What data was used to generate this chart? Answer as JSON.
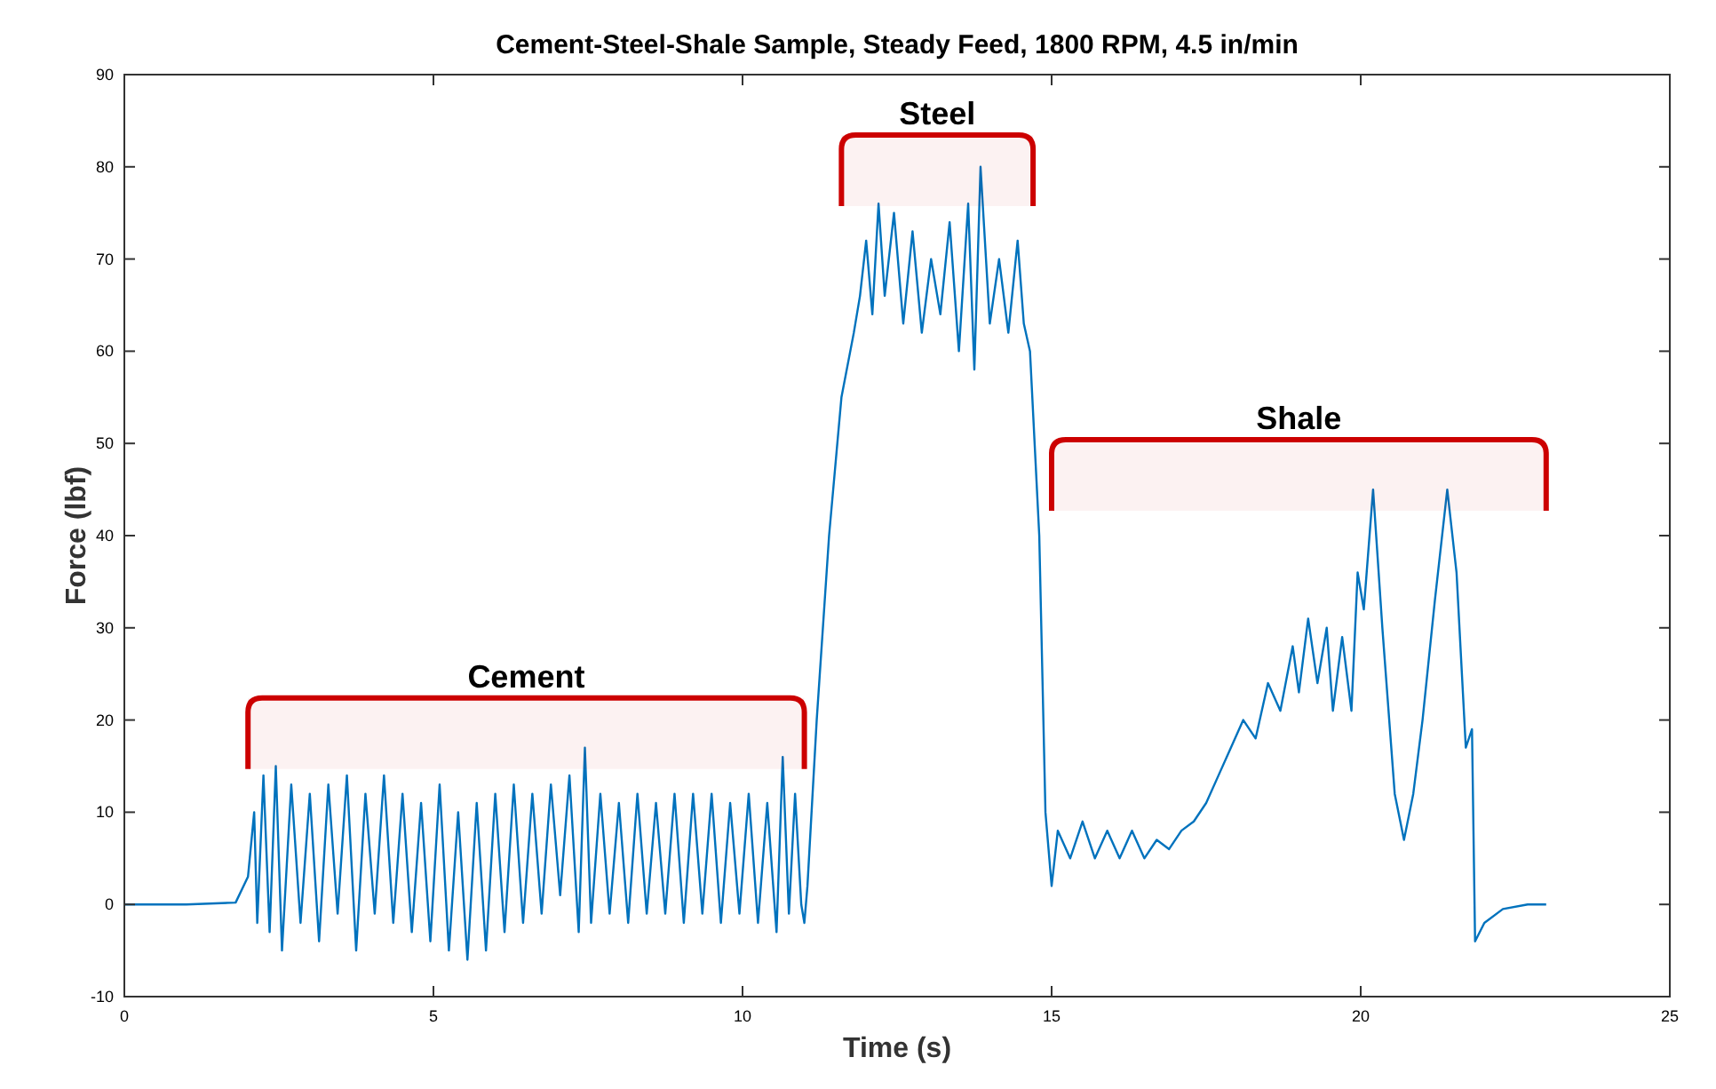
{
  "chart_data": {
    "type": "line",
    "title": "Cement-Steel-Shale Sample, Steady Feed, 1800 RPM, 4.5 in/min",
    "xlabel": "Time (s)",
    "ylabel": "Force (lbf)",
    "xlim": [
      0,
      25
    ],
    "xticks": [
      0,
      5,
      10,
      15,
      20,
      25
    ],
    "ylim": [
      -10,
      90
    ],
    "yticks": [
      -10,
      0,
      10,
      20,
      30,
      40,
      50,
      60,
      70,
      80,
      90
    ],
    "grid": false,
    "bands": [
      {
        "axis": "x",
        "from": 2,
        "to": 11,
        "label": "Cement",
        "color": "#cc0000"
      },
      {
        "axis": "x",
        "from": 11.6,
        "to": 14.7,
        "label": "Steel",
        "color": "#cc0000"
      },
      {
        "axis": "x",
        "from": 15,
        "to": 23,
        "label": "Shale",
        "color": "#cc0000"
      }
    ],
    "series": [
      {
        "color": "#0072bd",
        "x": [
          0,
          1,
          1.8,
          2.0,
          2.1,
          2.15,
          2.25,
          2.35,
          2.45,
          2.55,
          2.7,
          2.85,
          3.0,
          3.15,
          3.3,
          3.45,
          3.6,
          3.75,
          3.9,
          4.05,
          4.2,
          4.35,
          4.5,
          4.65,
          4.8,
          4.95,
          5.1,
          5.25,
          5.4,
          5.55,
          5.7,
          5.85,
          6.0,
          6.15,
          6.3,
          6.45,
          6.6,
          6.75,
          6.9,
          7.05,
          7.2,
          7.35,
          7.45,
          7.55,
          7.7,
          7.85,
          8.0,
          8.15,
          8.3,
          8.45,
          8.6,
          8.75,
          8.9,
          9.05,
          9.2,
          9.35,
          9.5,
          9.65,
          9.8,
          9.95,
          10.1,
          10.25,
          10.4,
          10.55,
          10.65,
          10.75,
          10.85,
          10.95,
          11.0,
          11.05,
          11.2,
          11.4,
          11.6,
          11.8,
          11.9,
          12.0,
          12.1,
          12.2,
          12.3,
          12.45,
          12.6,
          12.75,
          12.9,
          13.05,
          13.2,
          13.35,
          13.5,
          13.65,
          13.75,
          13.85,
          14.0,
          14.15,
          14.3,
          14.45,
          14.55,
          14.65,
          14.8,
          14.9,
          15.0,
          15.1,
          15.3,
          15.5,
          15.7,
          15.9,
          16.1,
          16.3,
          16.5,
          16.7,
          16.9,
          17.1,
          17.3,
          17.5,
          17.7,
          17.9,
          18.1,
          18.3,
          18.5,
          18.7,
          18.9,
          19.0,
          19.15,
          19.3,
          19.45,
          19.55,
          19.7,
          19.85,
          19.95,
          20.05,
          20.2,
          20.35,
          20.55,
          20.7,
          20.85,
          21.0,
          21.2,
          21.4,
          21.55,
          21.7,
          21.8,
          21.85,
          22.0,
          22.3,
          22.7,
          23.0
        ],
        "values": [
          0,
          0,
          0.2,
          3,
          10,
          -2,
          14,
          -3,
          15,
          -5,
          13,
          -2,
          12,
          -4,
          13,
          -1,
          14,
          -5,
          12,
          -1,
          14,
          -2,
          12,
          -3,
          11,
          -4,
          13,
          -5,
          10,
          -6,
          11,
          -5,
          12,
          -3,
          13,
          -2,
          12,
          -1,
          13,
          1,
          14,
          -3,
          17,
          -2,
          12,
          -1,
          11,
          -2,
          12,
          -1,
          11,
          -1,
          12,
          -2,
          12,
          -1,
          12,
          -2,
          11,
          -1,
          12,
          -2,
          11,
          -3,
          16,
          -1,
          12,
          0,
          -2,
          2,
          20,
          40,
          55,
          62,
          66,
          72,
          64,
          76,
          66,
          75,
          63,
          73,
          62,
          70,
          64,
          74,
          60,
          76,
          58,
          80,
          63,
          70,
          62,
          72,
          63,
          60,
          40,
          10,
          2,
          8,
          5,
          9,
          5,
          8,
          5,
          8,
          5,
          7,
          6,
          8,
          9,
          11,
          14,
          17,
          20,
          18,
          24,
          21,
          28,
          23,
          31,
          24,
          30,
          21,
          29,
          21,
          36,
          32,
          45,
          30,
          12,
          7,
          12,
          20,
          33,
          45,
          36,
          17,
          19,
          -4,
          -2,
          -0.5,
          0,
          0
        ]
      }
    ]
  }
}
